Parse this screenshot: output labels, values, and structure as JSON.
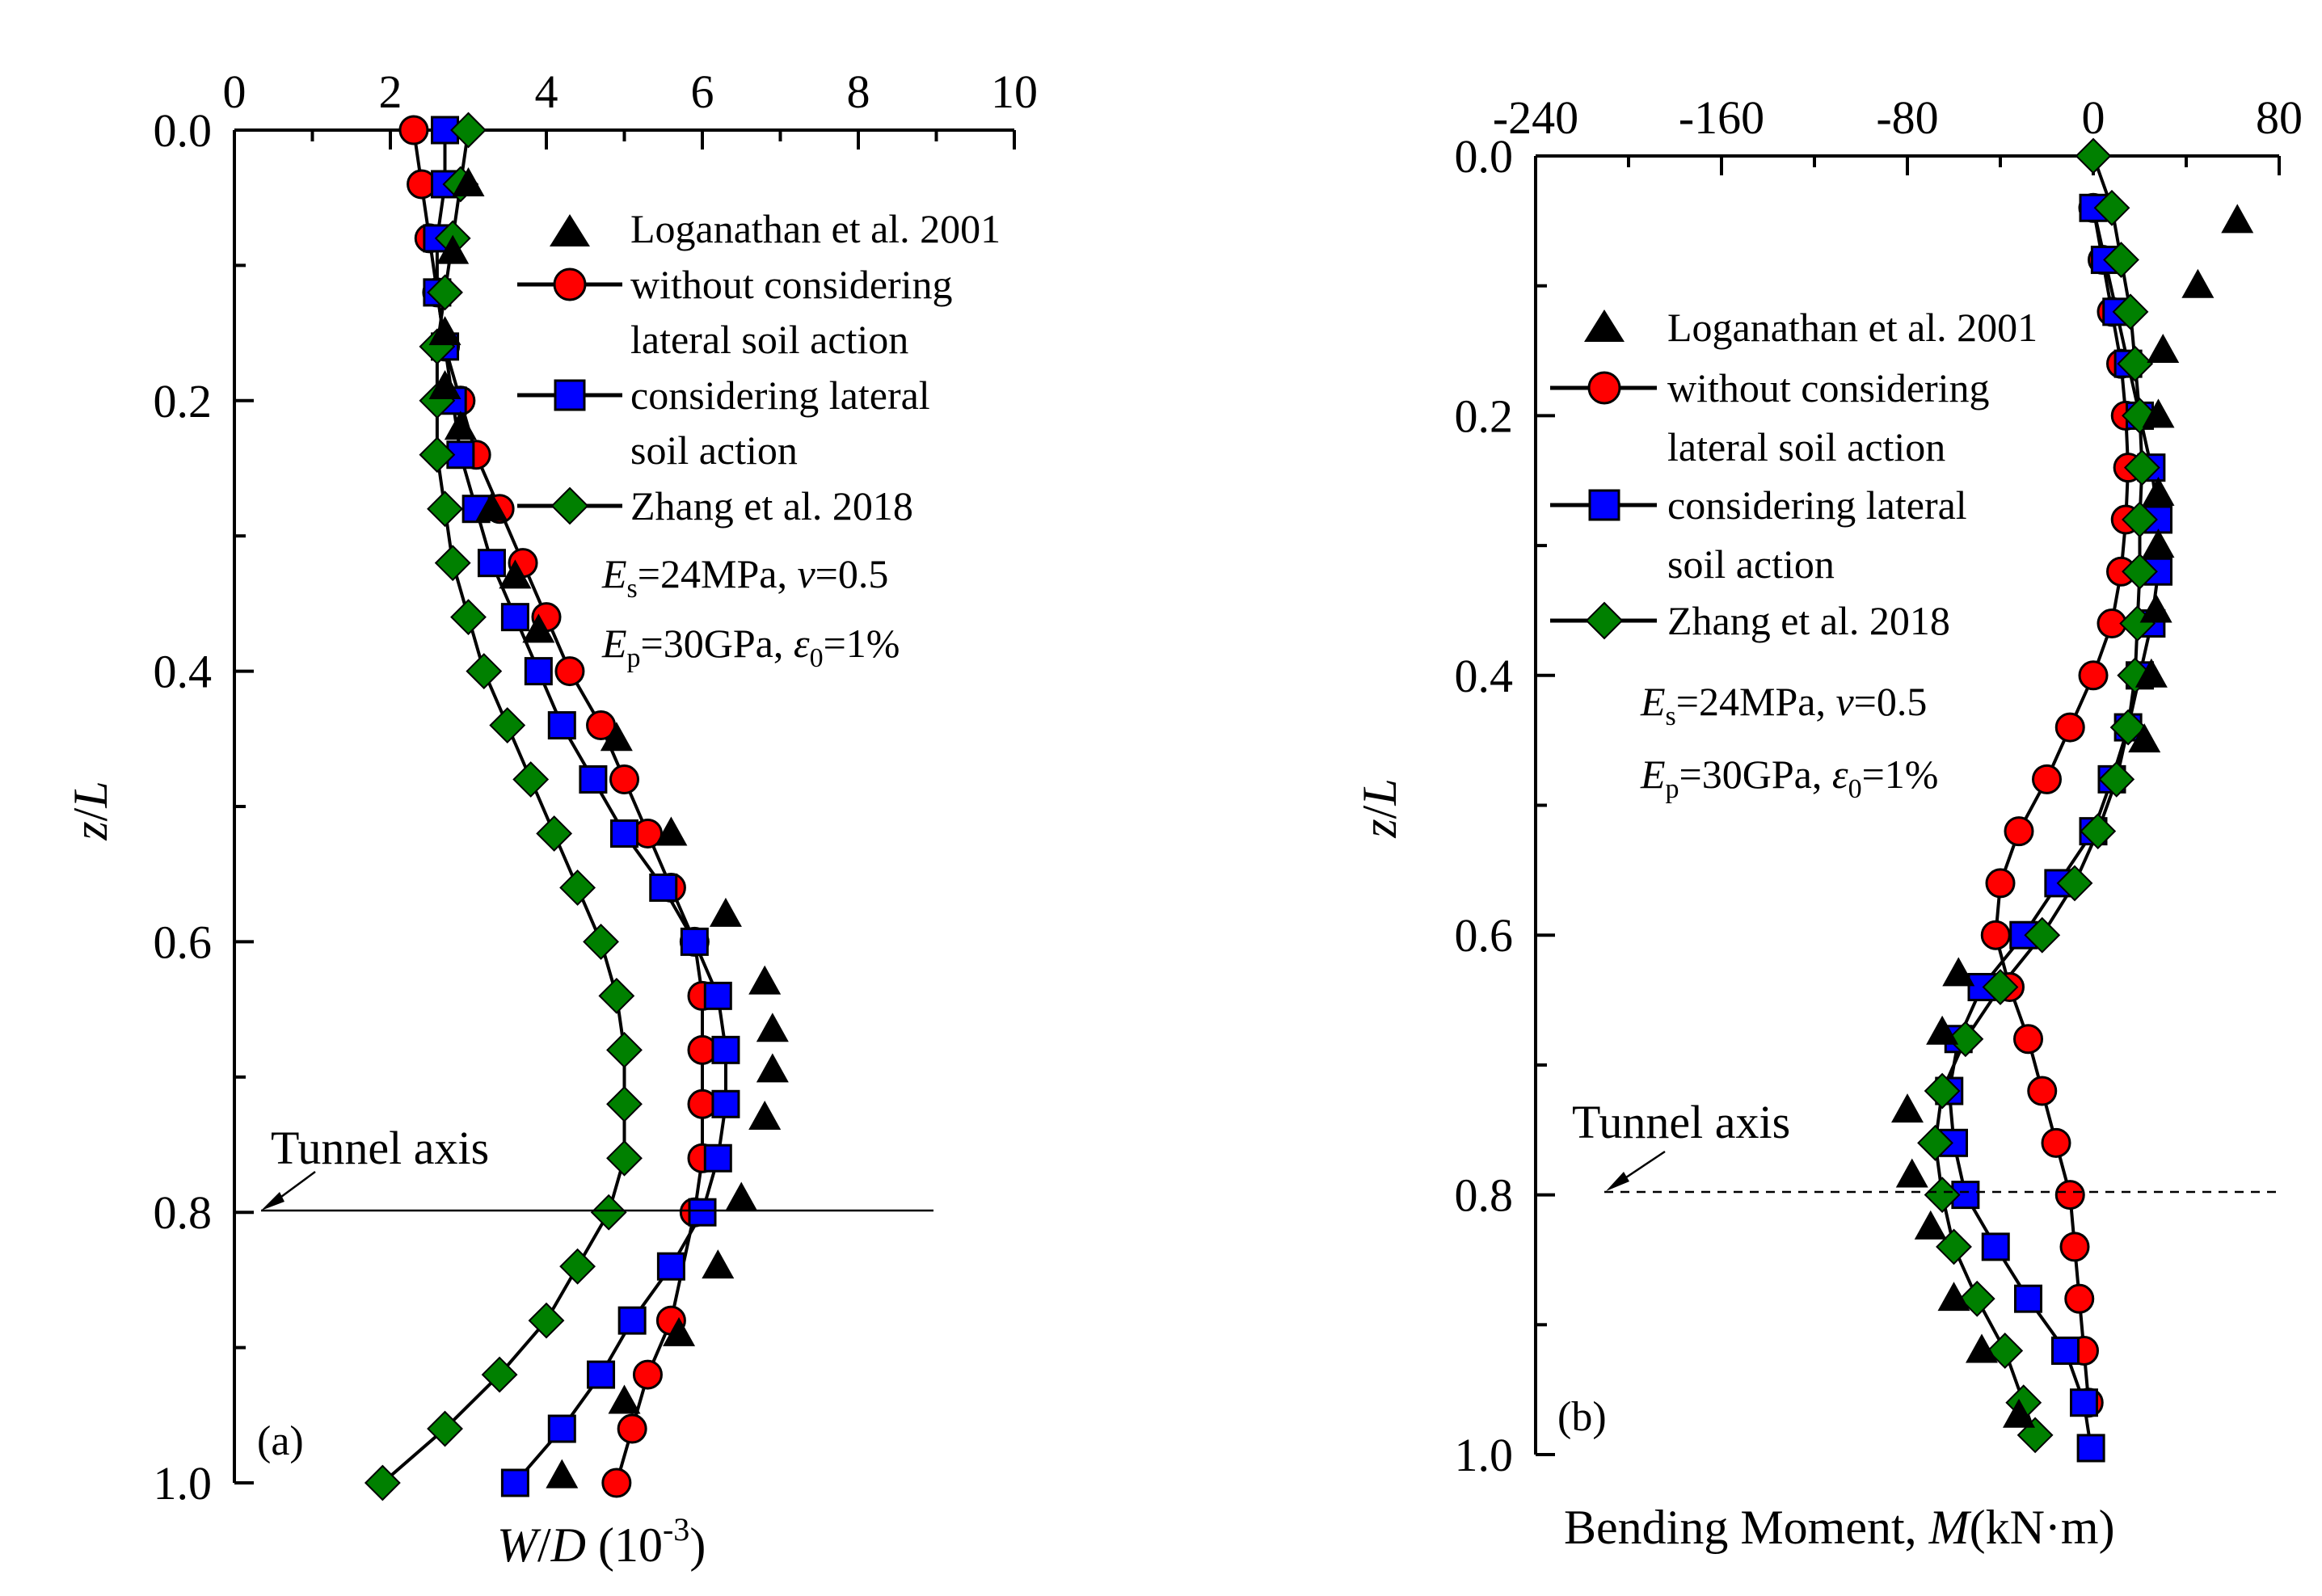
{
  "chart_data": [
    {
      "panel": "a",
      "type": "scatter",
      "panel_label": "(a)",
      "xlabel": {
        "var": "W",
        "mid": "/",
        "var2": "D",
        "unit": " (10",
        "exp": "-3",
        "close": ")"
      },
      "ylabel": {
        "var": "z",
        "mid": "/",
        "var2": "L"
      },
      "xlim": [
        0,
        10
      ],
      "ylim": [
        0,
        1.0
      ],
      "x_ticks": [
        0,
        2,
        4,
        6,
        8,
        10
      ],
      "x_tick_labels": [
        "0",
        "2",
        "4",
        "6",
        "8",
        "10"
      ],
      "y_ticks": [
        0,
        0.2,
        0.4,
        0.6,
        0.8,
        1.0
      ],
      "y_tick_labels": [
        "0.0",
        "0.2",
        "0.4",
        "0.6",
        "0.8",
        "1.0"
      ],
      "y_inverted": true,
      "x_axis_position": "top",
      "annotation": {
        "text": "Tunnel axis",
        "z": 0.8,
        "line_x_range": [
          0.3,
          9.0
        ]
      },
      "params": {
        "es": "E",
        "es_sub": "s",
        "es_val": "=24MPa, ",
        "nu": "v",
        "nu_val": "=0.5",
        "ep": "E",
        "ep_sub": "p",
        "ep_val": "=30GPa, ",
        "eps": "ε",
        "eps_sub": "0",
        "eps_val": "=1%"
      },
      "series": [
        {
          "name": "Loganathan et al. 2001",
          "marker": "triangle",
          "color": "#000000",
          "line": false,
          "points": [
            [
              3.0,
              0.04
            ],
            [
              2.8,
              0.09
            ],
            [
              2.7,
              0.15
            ],
            [
              2.7,
              0.19
            ],
            [
              2.9,
              0.22
            ],
            [
              3.3,
              0.28
            ],
            [
              3.6,
              0.33
            ],
            [
              3.9,
              0.37
            ],
            [
              4.9,
              0.45
            ],
            [
              5.6,
              0.52
            ],
            [
              6.3,
              0.58
            ],
            [
              6.8,
              0.63
            ],
            [
              6.9,
              0.665
            ],
            [
              6.9,
              0.695
            ],
            [
              6.8,
              0.73
            ],
            [
              6.5,
              0.79
            ],
            [
              6.2,
              0.84
            ],
            [
              5.7,
              0.89
            ],
            [
              5.0,
              0.94
            ],
            [
              4.2,
              0.995
            ]
          ]
        },
        {
          "name": "without considering lateral soil action",
          "legend_line1": "without considering",
          "legend_line2": "lateral soil action",
          "marker": "circle",
          "color": "#ff0000",
          "line": true,
          "points": [
            [
              2.3,
              0.0
            ],
            [
              2.4,
              0.04
            ],
            [
              2.5,
              0.08
            ],
            [
              2.6,
              0.12
            ],
            [
              2.7,
              0.16
            ],
            [
              2.9,
              0.2
            ],
            [
              3.1,
              0.24
            ],
            [
              3.4,
              0.28
            ],
            [
              3.7,
              0.32
            ],
            [
              4.0,
              0.36
            ],
            [
              4.3,
              0.4
            ],
            [
              4.7,
              0.44
            ],
            [
              5.0,
              0.48
            ],
            [
              5.3,
              0.52
            ],
            [
              5.6,
              0.56
            ],
            [
              5.9,
              0.6
            ],
            [
              6.0,
              0.64
            ],
            [
              6.0,
              0.68
            ],
            [
              6.0,
              0.72
            ],
            [
              6.0,
              0.76
            ],
            [
              5.9,
              0.8
            ],
            [
              5.6,
              0.88
            ],
            [
              5.3,
              0.92
            ],
            [
              5.1,
              0.96
            ],
            [
              4.9,
              1.0
            ]
          ]
        },
        {
          "name": "considering lateral soil action",
          "legend_line1": "considering lateral",
          "legend_line2": "soil action",
          "marker": "square",
          "color": "#0000ff",
          "line": true,
          "points": [
            [
              2.7,
              0.0
            ],
            [
              2.7,
              0.04
            ],
            [
              2.6,
              0.08
            ],
            [
              2.6,
              0.12
            ],
            [
              2.7,
              0.16
            ],
            [
              2.8,
              0.2
            ],
            [
              2.9,
              0.24
            ],
            [
              3.1,
              0.28
            ],
            [
              3.3,
              0.32
            ],
            [
              3.6,
              0.36
            ],
            [
              3.9,
              0.4
            ],
            [
              4.2,
              0.44
            ],
            [
              4.6,
              0.48
            ],
            [
              5.0,
              0.52
            ],
            [
              5.5,
              0.56
            ],
            [
              5.9,
              0.6
            ],
            [
              6.2,
              0.64
            ],
            [
              6.3,
              0.68
            ],
            [
              6.3,
              0.72
            ],
            [
              6.2,
              0.76
            ],
            [
              6.0,
              0.8
            ],
            [
              5.6,
              0.84
            ],
            [
              5.1,
              0.88
            ],
            [
              4.7,
              0.92
            ],
            [
              4.2,
              0.96
            ],
            [
              3.6,
              1.0
            ]
          ]
        },
        {
          "name": "Zhang et al. 2018",
          "marker": "diamond",
          "color": "#008000",
          "line": true,
          "points": [
            [
              3.0,
              0.0
            ],
            [
              2.9,
              0.04
            ],
            [
              2.8,
              0.08
            ],
            [
              2.7,
              0.12
            ],
            [
              2.6,
              0.16
            ],
            [
              2.6,
              0.2
            ],
            [
              2.6,
              0.24
            ],
            [
              2.7,
              0.28
            ],
            [
              2.8,
              0.32
            ],
            [
              3.0,
              0.36
            ],
            [
              3.2,
              0.4
            ],
            [
              3.5,
              0.44
            ],
            [
              3.8,
              0.48
            ],
            [
              4.1,
              0.52
            ],
            [
              4.4,
              0.56
            ],
            [
              4.7,
              0.6
            ],
            [
              4.9,
              0.64
            ],
            [
              5.0,
              0.68
            ],
            [
              5.0,
              0.72
            ],
            [
              5.0,
              0.76
            ],
            [
              4.8,
              0.8
            ],
            [
              4.4,
              0.84
            ],
            [
              4.0,
              0.88
            ],
            [
              3.4,
              0.92
            ],
            [
              2.7,
              0.96
            ],
            [
              1.9,
              1.0
            ]
          ]
        }
      ]
    },
    {
      "panel": "b",
      "type": "scatter",
      "panel_label": "(b)",
      "xlabel": {
        "text": "Bending Moment, ",
        "var": "M",
        "unit": "(kN·m)"
      },
      "ylabel": {
        "var": "z",
        "mid": "/",
        "var2": "L"
      },
      "xlim": [
        -240,
        80
      ],
      "ylim": [
        0,
        1.0
      ],
      "x_ticks": [
        -240,
        -160,
        -80,
        0,
        80
      ],
      "x_tick_labels": [
        "-240",
        "-160",
        "-80",
        "0",
        "80"
      ],
      "y_ticks": [
        0,
        0.2,
        0.4,
        0.6,
        0.8,
        1.0
      ],
      "y_tick_labels": [
        "0.0",
        "0.2",
        "0.4",
        "0.6",
        "0.8",
        "1.0"
      ],
      "y_inverted": true,
      "x_axis_position": "top",
      "annotation": {
        "text": "Tunnel axis",
        "z": 0.8,
        "line_x_range": [
          -205,
          80
        ]
      },
      "params": {
        "es": "E",
        "es_sub": "s",
        "es_val": "=24MPa, ",
        "nu": "v",
        "nu_val": "=0.5",
        "ep": "E",
        "ep_sub": "p",
        "ep_val": "=30GPa, ",
        "eps": "ε",
        "eps_sub": "0",
        "eps_val": "=1%"
      },
      "series": [
        {
          "name": "Loganathan et al. 2001",
          "marker": "triangle",
          "color": "#000000",
          "line": false,
          "points": [
            [
              62,
              0.05
            ],
            [
              45,
              0.1
            ],
            [
              30,
              0.15
            ],
            [
              28,
              0.2
            ],
            [
              28,
              0.26
            ],
            [
              28,
              0.3
            ],
            [
              27,
              0.35
            ],
            [
              25,
              0.4
            ],
            [
              22,
              0.45
            ],
            [
              -58,
              0.63
            ],
            [
              -65,
              0.675
            ],
            [
              -80,
              0.735
            ],
            [
              -78,
              0.785
            ],
            [
              -70,
              0.825
            ],
            [
              -60,
              0.88
            ],
            [
              -48,
              0.92
            ],
            [
              -32,
              0.97
            ]
          ]
        },
        {
          "name": "without considering lateral soil action",
          "legend_line1": "without considering",
          "legend_line2": "lateral soil action",
          "marker": "circle",
          "color": "#ff0000",
          "line": true,
          "points": [
            [
              0,
              0.04
            ],
            [
              4,
              0.08
            ],
            [
              8,
              0.12
            ],
            [
              12,
              0.16
            ],
            [
              14,
              0.2
            ],
            [
              15,
              0.24
            ],
            [
              14,
              0.28
            ],
            [
              12,
              0.32
            ],
            [
              8,
              0.36
            ],
            [
              0,
              0.4
            ],
            [
              -10,
              0.44
            ],
            [
              -20,
              0.48
            ],
            [
              -32,
              0.52
            ],
            [
              -40,
              0.56
            ],
            [
              -42,
              0.6
            ],
            [
              -36,
              0.64
            ],
            [
              -28,
              0.68
            ],
            [
              -22,
              0.72
            ],
            [
              -16,
              0.76
            ],
            [
              -10,
              0.8
            ],
            [
              -8,
              0.84
            ],
            [
              -6,
              0.88
            ],
            [
              -4,
              0.92
            ],
            [
              -2,
              0.96
            ]
          ]
        },
        {
          "name": "considering lateral soil action",
          "legend_line1": "considering lateral",
          "legend_line2": "soil action",
          "marker": "square",
          "color": "#0000ff",
          "line": true,
          "points": [
            [
              0,
              0.04
            ],
            [
              5,
              0.08
            ],
            [
              10,
              0.12
            ],
            [
              15,
              0.16
            ],
            [
              20,
              0.2
            ],
            [
              25,
              0.24
            ],
            [
              28,
              0.28
            ],
            [
              28,
              0.32
            ],
            [
              25,
              0.36
            ],
            [
              20,
              0.4
            ],
            [
              15,
              0.44
            ],
            [
              8,
              0.48
            ],
            [
              0,
              0.52
            ],
            [
              -15,
              0.56
            ],
            [
              -30,
              0.6
            ],
            [
              -48,
              0.64
            ],
            [
              -58,
              0.68
            ],
            [
              -62,
              0.72
            ],
            [
              -60,
              0.76
            ],
            [
              -55,
              0.8
            ],
            [
              -42,
              0.84
            ],
            [
              -28,
              0.88
            ],
            [
              -12,
              0.92
            ],
            [
              -4,
              0.96
            ],
            [
              -1,
              0.995
            ]
          ]
        },
        {
          "name": "Zhang et al. 2018",
          "marker": "diamond",
          "color": "#008000",
          "line": true,
          "points": [
            [
              0,
              0.0
            ],
            [
              8,
              0.04
            ],
            [
              12,
              0.08
            ],
            [
              16,
              0.12
            ],
            [
              18,
              0.16
            ],
            [
              20,
              0.2
            ],
            [
              21,
              0.24
            ],
            [
              20,
              0.28
            ],
            [
              20,
              0.32
            ],
            [
              19,
              0.36
            ],
            [
              18,
              0.4
            ],
            [
              15,
              0.44
            ],
            [
              10,
              0.48
            ],
            [
              2,
              0.52
            ],
            [
              -8,
              0.56
            ],
            [
              -22,
              0.6
            ],
            [
              -40,
              0.64
            ],
            [
              -55,
              0.68
            ],
            [
              -65,
              0.72
            ],
            [
              -68,
              0.76
            ],
            [
              -65,
              0.8
            ],
            [
              -60,
              0.84
            ],
            [
              -50,
              0.88
            ],
            [
              -38,
              0.92
            ],
            [
              -30,
              0.96
            ],
            [
              -25,
              0.985
            ]
          ]
        }
      ]
    }
  ]
}
